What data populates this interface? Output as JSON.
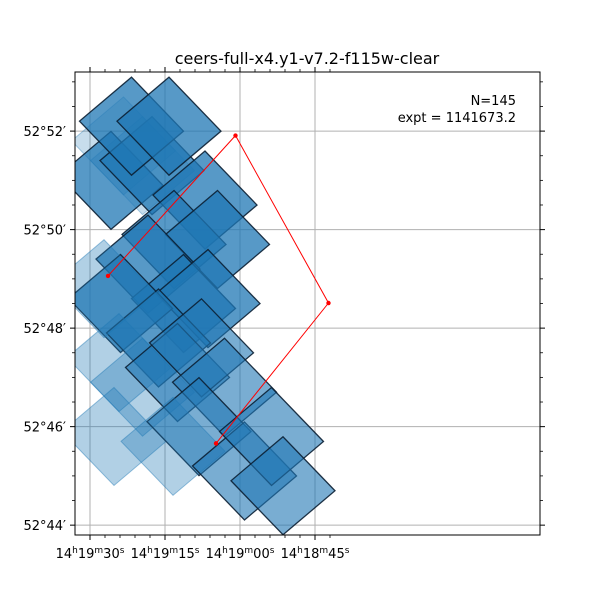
{
  "chart_data": {
    "type": "scatter",
    "title": "ceers-full-x4.y1-v7.2-f115w-clear",
    "annotation": {
      "line1": "N=145",
      "line2": "expt = 1141673.2",
      "placement": "top-right"
    },
    "xlim_sec": [
      2193,
      2100
    ],
    "ylim_arcmin": [
      43.8,
      53.2
    ],
    "grid": true,
    "x_ticks": [
      {
        "value_sec": 2190,
        "h": "14",
        "m": "19",
        "s": "30"
      },
      {
        "value_sec": 2175,
        "h": "14",
        "m": "19",
        "s": "15"
      },
      {
        "value_sec": 2160,
        "h": "14",
        "m": "19",
        "s": "00"
      },
      {
        "value_sec": 2145,
        "h": "14",
        "m": "18",
        "s": "45"
      }
    ],
    "x_minor_sec": [
      2187,
      2184,
      2181,
      2178,
      2172,
      2169,
      2166,
      2163,
      2157,
      2154,
      2151,
      2148,
      2142
    ],
    "y_ticks": [
      {
        "value_arcmin": 44,
        "label": "52°44′"
      },
      {
        "value_arcmin": 46,
        "label": "52°46′"
      },
      {
        "value_arcmin": 48,
        "label": "52°48′"
      },
      {
        "value_arcmin": 50,
        "label": "52°50′"
      },
      {
        "value_arcmin": 52,
        "label": "52°52′"
      }
    ],
    "y_minor_arcmin": [
      44.5,
      45,
      45.5,
      46.5,
      47,
      47.5,
      48.5,
      49,
      49.5,
      50.5,
      51,
      51.5,
      52.5,
      53
    ],
    "red_polygon": {
      "color": "#ff0000",
      "vertices": [
        {
          "x_sec": 2186.4,
          "y_arcmin": 49.06
        },
        {
          "x_sec": 2160.9,
          "y_arcmin": 51.91
        },
        {
          "x_sec": 2142.3,
          "y_arcmin": 48.51
        },
        {
          "x_sec": 2164.8,
          "y_arcmin": 45.66
        }
      ]
    },
    "footprints": [
      {
        "cx": 2183.3,
        "cy": 51.7,
        "alpha": 0.25,
        "edge": false
      },
      {
        "cx": 2179.5,
        "cy": 51.3,
        "alpha": 0.25,
        "edge": false
      },
      {
        "cx": 2185.8,
        "cy": 51.0,
        "alpha": 0.75,
        "edge": true
      },
      {
        "cx": 2177.6,
        "cy": 51.3,
        "alpha": 0.75,
        "edge": true
      },
      {
        "cx": 2181.7,
        "cy": 52.1,
        "alpha": 0.75,
        "edge": true
      },
      {
        "cx": 2174.2,
        "cy": 52.1,
        "alpha": 0.75,
        "edge": true
      },
      {
        "cx": 2167.0,
        "cy": 50.6,
        "alpha": 0.75,
        "edge": true
      },
      {
        "cx": 2173.2,
        "cy": 49.8,
        "alpha": 0.75,
        "edge": true
      },
      {
        "cx": 2164.5,
        "cy": 49.8,
        "alpha": 0.75,
        "edge": true
      },
      {
        "cx": 2178.4,
        "cy": 49.3,
        "alpha": 0.75,
        "edge": true
      },
      {
        "cx": 2171.3,
        "cy": 48.5,
        "alpha": 0.75,
        "edge": true
      },
      {
        "cx": 2166.4,
        "cy": 48.6,
        "alpha": 0.75,
        "edge": true
      },
      {
        "cx": 2183.9,
        "cy": 48.5,
        "alpha": 0.75,
        "edge": true
      },
      {
        "cx": 2176.3,
        "cy": 47.8,
        "alpha": 0.75,
        "edge": true
      },
      {
        "cx": 2187.2,
        "cy": 48.8,
        "alpha": 0.35,
        "edge": false
      },
      {
        "cx": 2184.2,
        "cy": 47.3,
        "alpha": 0.35,
        "edge": false
      },
      {
        "cx": 2179.5,
        "cy": 46.8,
        "alpha": 0.35,
        "edge": false
      },
      {
        "cx": 2185.2,
        "cy": 45.8,
        "alpha": 0.35,
        "edge": false
      },
      {
        "cx": 2172.5,
        "cy": 47.1,
        "alpha": 0.6,
        "edge": true
      },
      {
        "cx": 2167.7,
        "cy": 47.6,
        "alpha": 0.6,
        "edge": true
      },
      {
        "cx": 2163.1,
        "cy": 46.8,
        "alpha": 0.6,
        "edge": true
      },
      {
        "cx": 2168.2,
        "cy": 46.0,
        "alpha": 0.6,
        "edge": true
      },
      {
        "cx": 2173.4,
        "cy": 45.6,
        "alpha": 0.35,
        "edge": false
      },
      {
        "cx": 2159.1,
        "cy": 45.1,
        "alpha": 0.6,
        "edge": true
      },
      {
        "cx": 2153.7,
        "cy": 45.8,
        "alpha": 0.6,
        "edge": true
      },
      {
        "cx": 2151.4,
        "cy": 44.8,
        "alpha": 0.6,
        "edge": true
      }
    ],
    "colors": {
      "fill": "#1f77b4",
      "edge": "#0b1f33",
      "grid": "#b0b0b0",
      "red": "#ff0000"
    }
  }
}
